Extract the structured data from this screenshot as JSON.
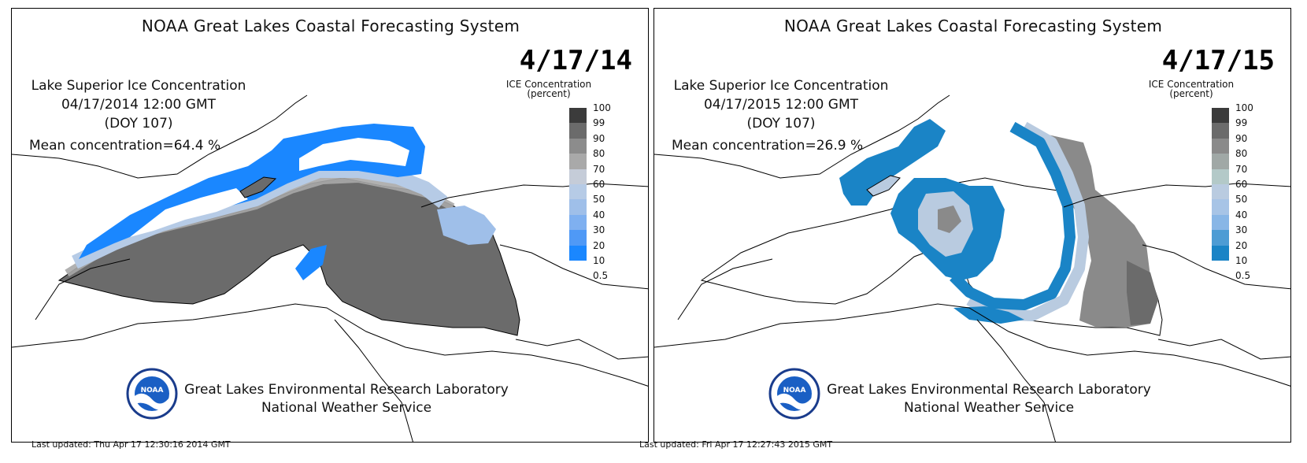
{
  "panels": [
    {
      "system_title": "NOAA Great Lakes Coastal Forecasting System",
      "date_stamp": "4/17/14",
      "map_title": "Lake Superior Ice Concentration",
      "datetime": "04/17/2014 12:00 GMT",
      "doy": "(DOY 107)",
      "mean": "Mean concentration=64.4 %",
      "legend_title_1": "ICE Concentration",
      "legend_title_2": "(percent)",
      "footer_lab": "Great Lakes Environmental Research Laboratory",
      "footer_nws": "National Weather Service",
      "logo_text": "NOAA",
      "last_updated": "Last updated: Thu Apr 17 12:30:16 2014 GMT",
      "colors": [
        "#3b3b3b",
        "#6b6b6b",
        "#8c8c8c",
        "#a9a9a9",
        "#c5ccd8",
        "#b6cbe6",
        "#9fbfe9",
        "#7fb0f0",
        "#4f99f6",
        "#1a87ff"
      ]
    },
    {
      "system_title": "NOAA Great Lakes Coastal Forecasting System",
      "date_stamp": "4/17/15",
      "map_title": "Lake Superior Ice Concentration",
      "datetime": "04/17/2015 12:00 GMT",
      "doy": "(DOY 107)",
      "mean": "Mean concentration=26.9 %",
      "legend_title_1": "ICE Concentration",
      "legend_title_2": "(percent)",
      "footer_lab": "Great Lakes Environmental Research Laboratory",
      "footer_nws": "National Weather Service",
      "logo_text": "NOAA",
      "last_updated": "Last updated: Fri Apr 17 12:27:43 2015 GMT",
      "colors": [
        "#3b3b3b",
        "#6b6b6b",
        "#8a8a8a",
        "#a0a8a6",
        "#b3c9c8",
        "#b9cbe0",
        "#a7c4e6",
        "#88b6e6",
        "#4d9cd4",
        "#1a84c6"
      ]
    }
  ],
  "legend_labels": [
    "100",
    "99",
    "90",
    "80",
    "70",
    "60",
    "50",
    "40",
    "30",
    "20",
    "10",
    "0.5"
  ],
  "panel_ids": [
    "p0",
    "p1"
  ]
}
